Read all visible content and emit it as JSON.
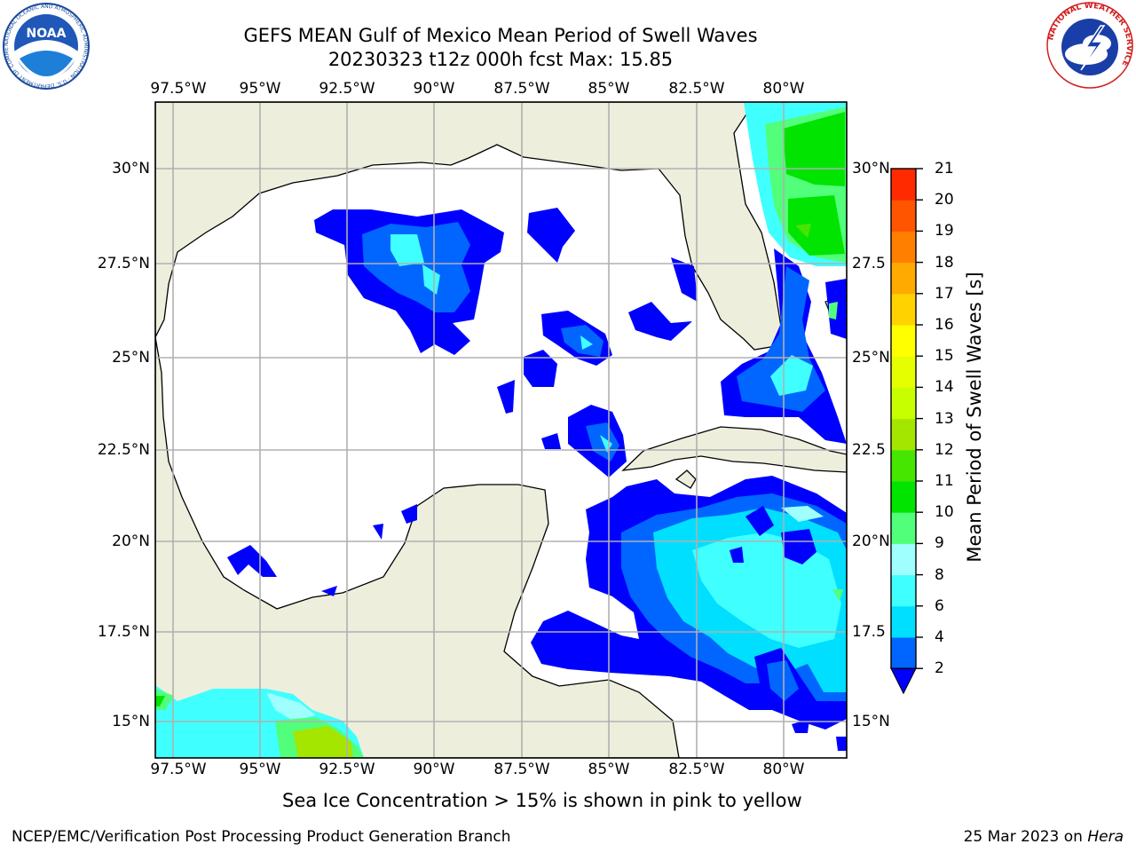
{
  "header": {
    "title_line1": "GEFS MEAN Gulf of Mexico Mean Period of Swell Waves",
    "title_line2": "20230323 t12z 000h fcst   Max: 15.85"
  },
  "logos": {
    "left_text": "NOAA",
    "left_ring_text": "NATIONAL OCEANIC AND ATMOSPHERIC ADMINISTRATION · U.S. DEPARTMENT OF COMMERCE",
    "right_ring_text": "NATIONAL WEATHER SERVICE"
  },
  "map": {
    "region": "Gulf of Mexico",
    "lon_ticks": [
      "97.5°W",
      "95°W",
      "92.5°W",
      "90°W",
      "87.5°W",
      "85°W",
      "82.5°W",
      "80°W"
    ],
    "lat_ticks_left": [
      "30°N",
      "27.5°N",
      "25°N",
      "22.5°N",
      "20°N",
      "17.5°N",
      "15°N"
    ],
    "lat_ticks_right": [
      "30°N",
      "27.5",
      "25°N",
      "22.5",
      "20°N",
      "17.5",
      "15°N"
    ],
    "colors": {
      "land": "#eeeedd",
      "ocean_below_min": "#ffffff",
      "grid": "#b0b0b0"
    }
  },
  "colorbar": {
    "label": "Mean Period of Swell Waves [s]",
    "ticks": [
      "2",
      "4",
      "6",
      "8",
      "9",
      "10",
      "11",
      "12",
      "13",
      "14",
      "15",
      "16",
      "17",
      "18",
      "19",
      "20",
      "21"
    ],
    "colors": [
      "#0000ff",
      "#0066ff",
      "#00dfff",
      "#40ffff",
      "#9fffff",
      "#52ff7a",
      "#00e400",
      "#46e600",
      "#a4e600",
      "#c8ff00",
      "#e6ff00",
      "#ffff00",
      "#ffd200",
      "#ffaa00",
      "#ff8000",
      "#ff5500",
      "#ff2a00",
      "#ff0000"
    ]
  },
  "footer": {
    "note": "Sea Ice Concentration > 15% is shown in pink to yellow",
    "left": "NCEP/EMC/Verification Post Processing Product Generation Branch",
    "right_date": "25 Mar 2023 on",
    "right_host": "Hera"
  }
}
